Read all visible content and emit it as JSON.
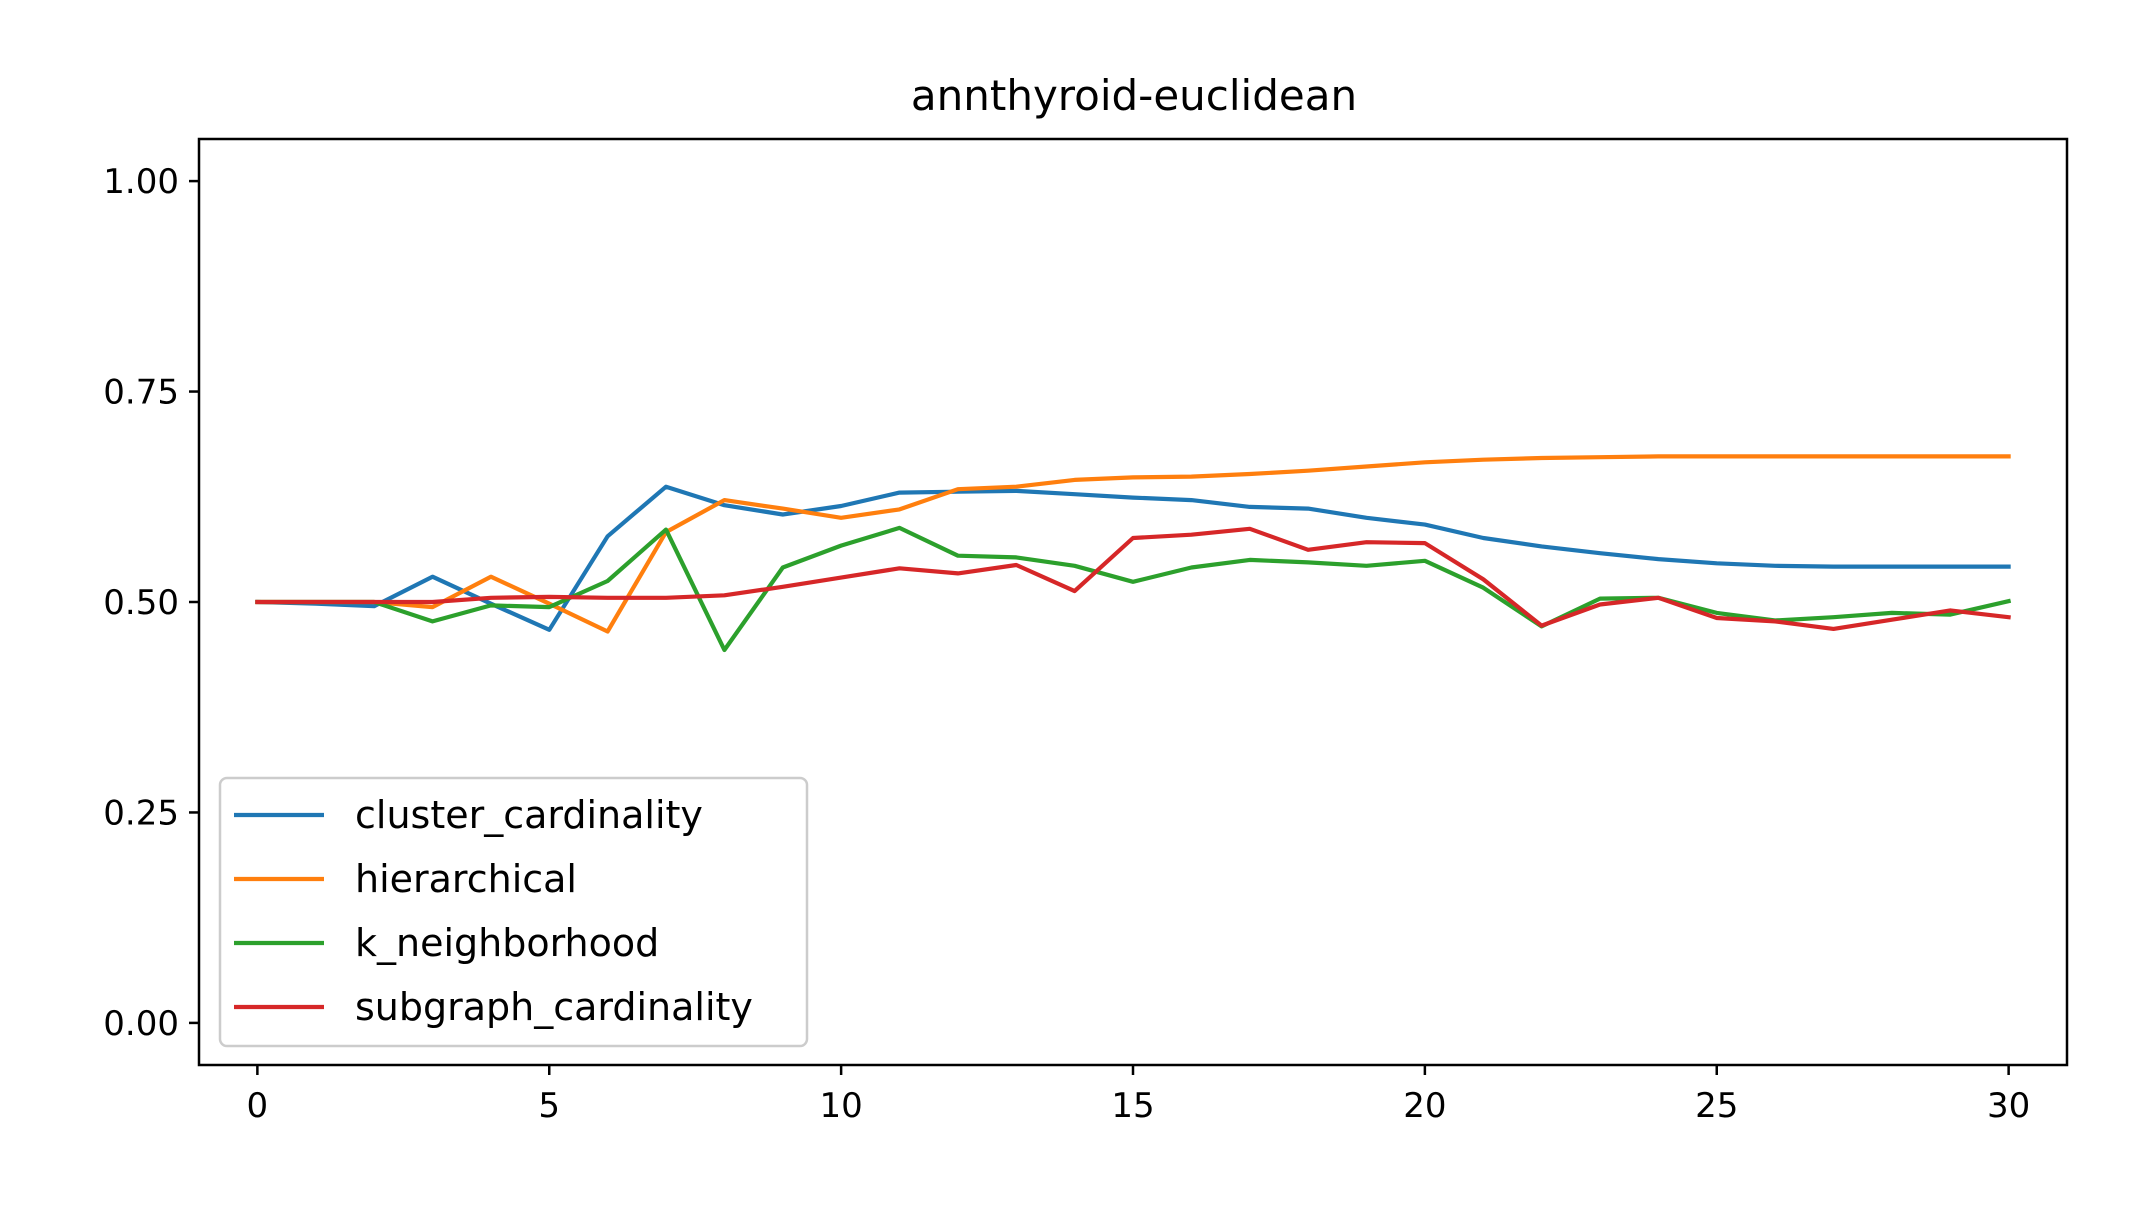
{
  "chart_data": {
    "type": "line",
    "title": "annthyroid-euclidean",
    "xlabel": "",
    "ylabel": "",
    "xlim": [
      -1,
      31
    ],
    "ylim": [
      -0.05,
      1.05
    ],
    "xticks": [
      0,
      5,
      10,
      15,
      20,
      25,
      30
    ],
    "xtick_labels": [
      "0",
      "5",
      "10",
      "15",
      "20",
      "25",
      "30"
    ],
    "yticks": [
      0.0,
      0.25,
      0.5,
      0.75,
      1.0
    ],
    "ytick_labels": [
      "0.00",
      "0.25",
      "0.50",
      "0.75",
      "1.00"
    ],
    "grid": false,
    "legend_position": "lower-left",
    "x": [
      0,
      1,
      2,
      3,
      4,
      5,
      6,
      7,
      8,
      9,
      10,
      11,
      12,
      13,
      14,
      15,
      16,
      17,
      18,
      19,
      20,
      21,
      22,
      23,
      24,
      25,
      26,
      27,
      28,
      29,
      30
    ],
    "series": [
      {
        "name": "cluster_cardinality",
        "color": "#1f77b4",
        "values": [
          0.5,
          0.498,
          0.495,
          0.53,
          0.498,
          0.467,
          0.578,
          0.637,
          0.615,
          0.604,
          0.614,
          0.63,
          0.631,
          0.632,
          0.628,
          0.624,
          0.621,
          0.613,
          0.611,
          0.6,
          0.592,
          0.576,
          0.566,
          0.558,
          0.551,
          0.546,
          0.543,
          0.542,
          0.542,
          0.542,
          0.542
        ]
      },
      {
        "name": "hierarchical",
        "color": "#ff7f0e",
        "values": [
          0.5,
          0.5,
          0.5,
          0.494,
          0.53,
          0.498,
          0.465,
          0.583,
          0.621,
          0.611,
          0.6,
          0.61,
          0.634,
          0.637,
          0.645,
          0.648,
          0.649,
          0.652,
          0.656,
          0.661,
          0.666,
          0.669,
          0.671,
          0.672,
          0.673,
          0.673,
          0.673,
          0.673,
          0.673,
          0.673,
          0.673
        ]
      },
      {
        "name": "k_neighborhood",
        "color": "#2ca02c",
        "values": [
          0.5,
          0.5,
          0.5,
          0.477,
          0.496,
          0.494,
          0.525,
          0.586,
          0.443,
          0.541,
          0.567,
          0.588,
          0.555,
          0.553,
          0.543,
          0.524,
          0.541,
          0.55,
          0.547,
          0.543,
          0.549,
          0.517,
          0.471,
          0.504,
          0.505,
          0.487,
          0.478,
          0.482,
          0.487,
          0.485,
          0.501
        ]
      },
      {
        "name": "subgraph_cardinality",
        "color": "#d62728",
        "values": [
          0.5,
          0.5,
          0.5,
          0.5,
          0.505,
          0.506,
          0.505,
          0.505,
          0.508,
          0.518,
          0.529,
          0.54,
          0.534,
          0.544,
          0.513,
          0.576,
          0.58,
          0.587,
          0.562,
          0.571,
          0.57,
          0.527,
          0.472,
          0.497,
          0.505,
          0.481,
          0.477,
          0.468,
          0.479,
          0.49,
          0.482
        ]
      }
    ]
  }
}
